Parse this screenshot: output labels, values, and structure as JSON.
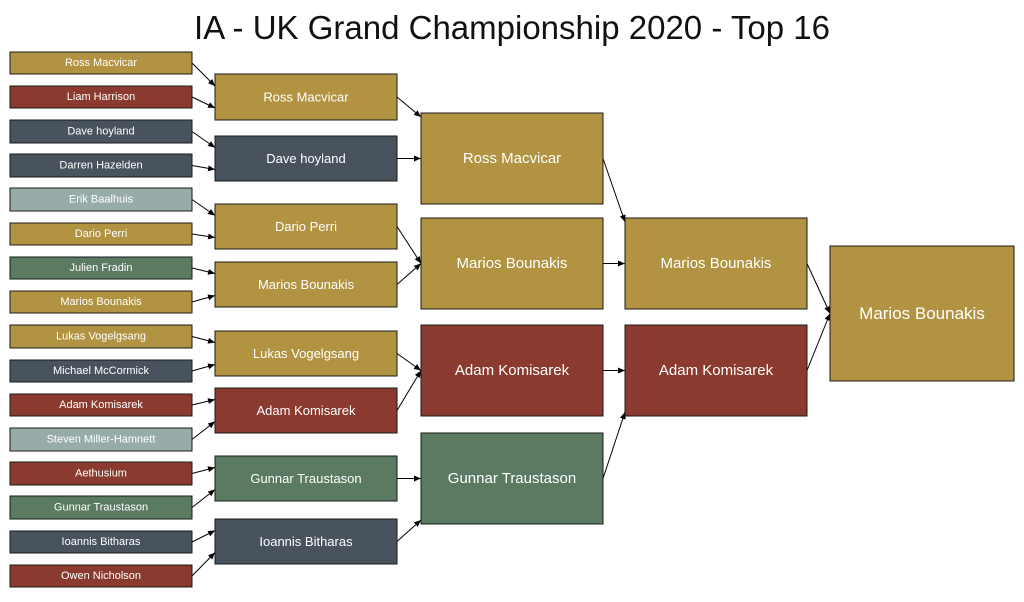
{
  "title": "IA - UK Grand Championship 2020 - Top 16",
  "colors": {
    "gold": "#b19342",
    "red": "#8a3a2e",
    "slate": "#48535d",
    "pale": "#97aca9",
    "green": "#5a7b61"
  },
  "rounds": [
    {
      "name": "round-of-16",
      "matches": [
        {
          "label": "Ross Macvicar",
          "color": "gold"
        },
        {
          "label": "Liam Harrison",
          "color": "red"
        },
        {
          "label": "Dave hoyland",
          "color": "slate"
        },
        {
          "label": "Darren Hazelden",
          "color": "slate"
        },
        {
          "label": "Erik Baalhuis",
          "color": "pale"
        },
        {
          "label": "Dario Perri",
          "color": "gold"
        },
        {
          "label": "Julien Fradin",
          "color": "green"
        },
        {
          "label": "Marios Bounakis",
          "color": "gold"
        },
        {
          "label": "Lukas Vogelgsang",
          "color": "gold"
        },
        {
          "label": "Michael McCormick",
          "color": "slate"
        },
        {
          "label": "Adam Komisarek",
          "color": "red"
        },
        {
          "label": "Steven Miller-Hamnett",
          "color": "pale"
        },
        {
          "label": "Aethusium",
          "color": "red"
        },
        {
          "label": "Gunnar Traustason",
          "color": "green"
        },
        {
          "label": "Ioannis Bitharas",
          "color": "slate"
        },
        {
          "label": "Owen Nicholson",
          "color": "red"
        }
      ]
    },
    {
      "name": "round-of-8",
      "matches": [
        {
          "label": "Ross Macvicar",
          "color": "gold"
        },
        {
          "label": "Dave hoyland",
          "color": "slate"
        },
        {
          "label": "Dario Perri",
          "color": "gold"
        },
        {
          "label": "Marios Bounakis",
          "color": "gold"
        },
        {
          "label": "Lukas Vogelgsang",
          "color": "gold"
        },
        {
          "label": "Adam Komisarek",
          "color": "red"
        },
        {
          "label": "Gunnar Traustason",
          "color": "green"
        },
        {
          "label": "Ioannis Bitharas",
          "color": "slate"
        }
      ]
    },
    {
      "name": "quarterfinal",
      "matches": [
        {
          "label": "Ross Macvicar",
          "color": "gold"
        },
        {
          "label": "Marios Bounakis",
          "color": "gold"
        },
        {
          "label": "Adam Komisarek",
          "color": "red"
        },
        {
          "label": "Gunnar Traustason",
          "color": "green"
        }
      ]
    },
    {
      "name": "semifinal",
      "matches": [
        {
          "label": "Marios Bounakis",
          "color": "gold"
        },
        {
          "label": "Adam Komisarek",
          "color": "red"
        }
      ]
    },
    {
      "name": "final",
      "matches": [
        {
          "label": "Marios Bounakis",
          "color": "gold"
        }
      ]
    }
  ]
}
